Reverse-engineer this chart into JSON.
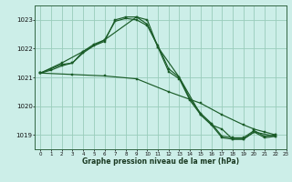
{
  "title": "Graphe pression niveau de la mer (hPa)",
  "bg_color": "#cceee8",
  "grid_color": "#99ccbb",
  "line_color": "#1a5c28",
  "xlim": [
    -0.5,
    23
  ],
  "ylim": [
    1018.5,
    1023.5
  ],
  "yticks": [
    1019,
    1020,
    1021,
    1022,
    1023
  ],
  "xticks": [
    0,
    1,
    2,
    3,
    4,
    5,
    6,
    7,
    8,
    9,
    10,
    11,
    12,
    13,
    14,
    15,
    16,
    17,
    18,
    19,
    20,
    21,
    22,
    23
  ],
  "series1": [
    [
      0,
      1021.15
    ],
    [
      1,
      1021.3
    ],
    [
      2,
      1021.45
    ],
    [
      3,
      1021.5
    ],
    [
      4,
      1021.85
    ],
    [
      5,
      1022.1
    ],
    [
      6,
      1022.25
    ],
    [
      7,
      1023.0
    ],
    [
      8,
      1023.1
    ],
    [
      9,
      1023.1
    ],
    [
      10,
      1022.85
    ],
    [
      11,
      1022.05
    ],
    [
      12,
      1021.2
    ],
    [
      13,
      1020.95
    ],
    [
      14,
      1020.2
    ],
    [
      15,
      1019.7
    ],
    [
      16,
      1019.35
    ],
    [
      17,
      1018.9
    ],
    [
      18,
      1018.85
    ],
    [
      19,
      1018.85
    ],
    [
      20,
      1019.1
    ],
    [
      21,
      1018.9
    ],
    [
      22,
      1018.95
    ]
  ],
  "series2": [
    [
      0,
      1021.15
    ],
    [
      1,
      1021.25
    ],
    [
      2,
      1021.4
    ],
    [
      3,
      1021.5
    ],
    [
      4,
      1021.9
    ],
    [
      5,
      1022.15
    ],
    [
      6,
      1022.3
    ],
    [
      7,
      1022.95
    ],
    [
      8,
      1023.05
    ],
    [
      9,
      1023.0
    ],
    [
      10,
      1022.8
    ],
    [
      11,
      1022.1
    ],
    [
      12,
      1021.3
    ],
    [
      13,
      1021.0
    ],
    [
      14,
      1020.25
    ],
    [
      15,
      1019.75
    ],
    [
      16,
      1019.4
    ],
    [
      17,
      1018.95
    ],
    [
      18,
      1018.9
    ],
    [
      19,
      1018.9
    ],
    [
      20,
      1019.15
    ],
    [
      21,
      1018.95
    ],
    [
      22,
      1019.0
    ]
  ],
  "series3": [
    [
      0,
      1021.15
    ],
    [
      2,
      1021.5
    ],
    [
      4,
      1021.9
    ],
    [
      6,
      1022.3
    ],
    [
      9,
      1023.1
    ],
    [
      10,
      1023.0
    ],
    [
      11,
      1022.05
    ],
    [
      13,
      1021.0
    ],
    [
      15,
      1019.7
    ],
    [
      16,
      1019.35
    ],
    [
      17,
      1019.2
    ],
    [
      18,
      1018.85
    ],
    [
      19,
      1018.85
    ],
    [
      20,
      1019.1
    ],
    [
      22,
      1018.95
    ]
  ],
  "series4": [
    [
      0,
      1021.15
    ],
    [
      3,
      1021.1
    ],
    [
      6,
      1021.05
    ],
    [
      9,
      1020.95
    ],
    [
      12,
      1020.5
    ],
    [
      15,
      1020.1
    ],
    [
      17,
      1019.7
    ],
    [
      19,
      1019.35
    ],
    [
      20,
      1019.2
    ],
    [
      21,
      1019.1
    ],
    [
      22,
      1019.0
    ]
  ]
}
